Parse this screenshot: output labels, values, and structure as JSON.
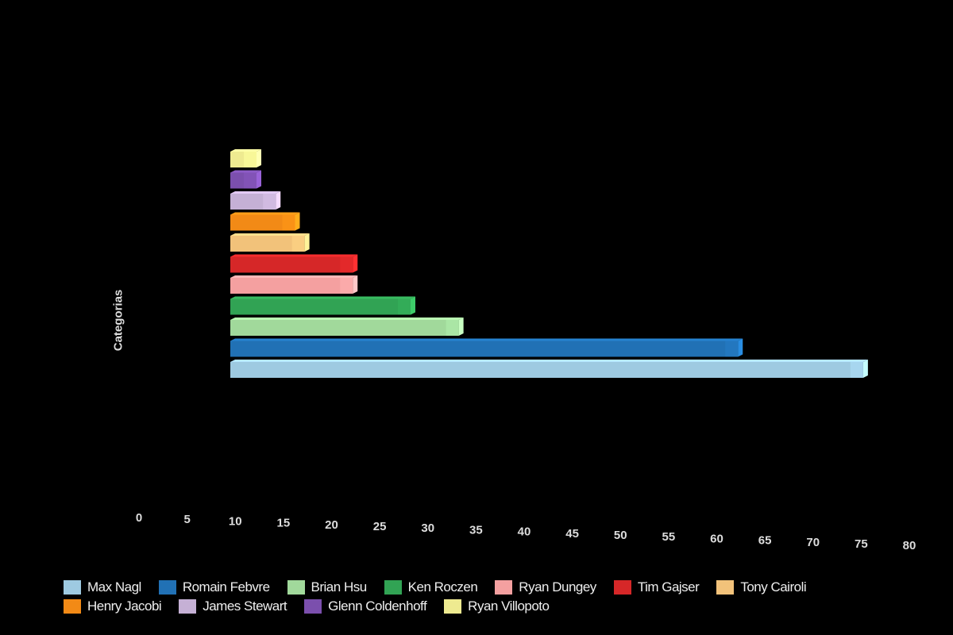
{
  "chart_data": {
    "type": "bar",
    "orientation": "horizontal",
    "style": "3d",
    "title": "",
    "xlabel": "",
    "ylabel": "Categorias",
    "xlim": [
      0,
      80
    ],
    "xticks": [
      "0",
      "5",
      "10",
      "15",
      "20",
      "25",
      "30",
      "35",
      "40",
      "45",
      "50",
      "55",
      "60",
      "65",
      "70",
      "75",
      "80"
    ],
    "grid": false,
    "legend_position": "bottom",
    "series": [
      {
        "name": "Max Nagl",
        "value": 76,
        "color": "#9ecae1"
      },
      {
        "name": "Romain Febvre",
        "value": 63,
        "color": "#2171b5"
      },
      {
        "name": "Brian Hsu",
        "value": 34,
        "color": "#a1d99b"
      },
      {
        "name": "Ken Roczen",
        "value": 29,
        "color": "#31a354"
      },
      {
        "name": "Ryan Dungey",
        "value": 23,
        "color": "#f4a0a0"
      },
      {
        "name": "Tim Gajser",
        "value": 23,
        "color": "#d62728"
      },
      {
        "name": "Tony Cairoli",
        "value": 18,
        "color": "#f2c27a"
      },
      {
        "name": "Henry Jacobi",
        "value": 17,
        "color": "#f28a16"
      },
      {
        "name": "James Stewart",
        "value": 15,
        "color": "#c5b0d5"
      },
      {
        "name": "Glenn Coldenhoff",
        "value": 13,
        "color": "#7b4fad"
      },
      {
        "name": "Ryan Villopoto",
        "value": 13,
        "color": "#eeea90"
      }
    ]
  }
}
